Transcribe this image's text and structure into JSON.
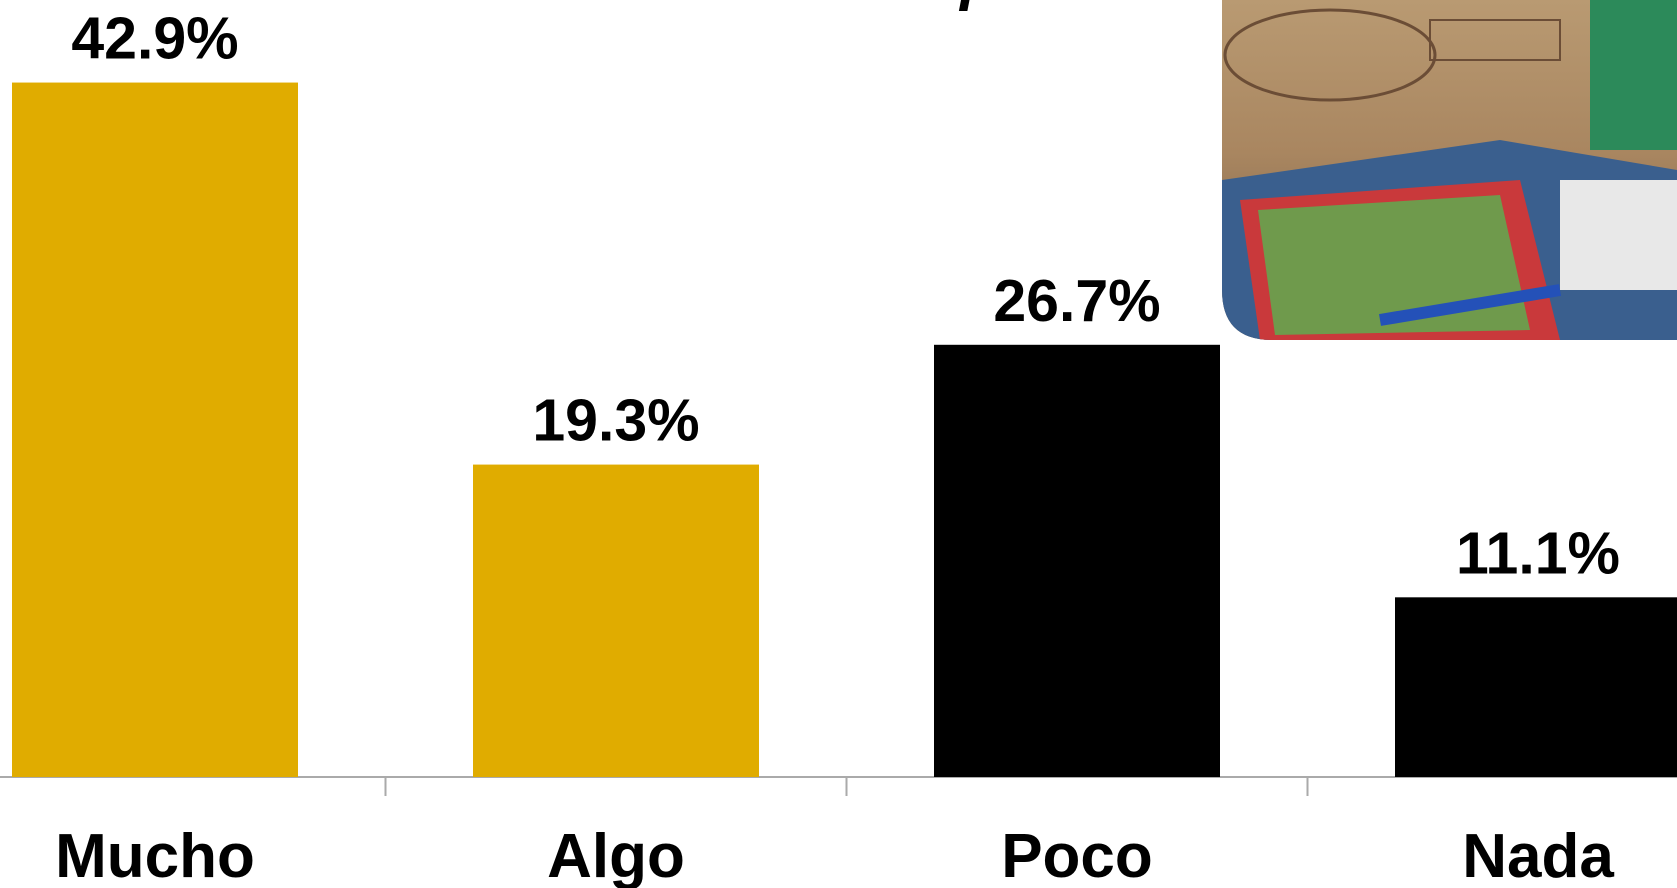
{
  "chart_data": {
    "type": "bar",
    "title": "educación en el país?",
    "categories": [
      "Mucho",
      "Algo",
      "Poco",
      "Nada"
    ],
    "values": [
      42.9,
      19.3,
      26.7,
      11.1
    ],
    "value_labels": [
      "42.9%",
      "19.3%",
      "26.7%",
      "11.1%"
    ],
    "colors": [
      "#e0ac00",
      "#e0ac00",
      "#000000",
      "#000000"
    ],
    "ylim": [
      0,
      48
    ]
  }
}
